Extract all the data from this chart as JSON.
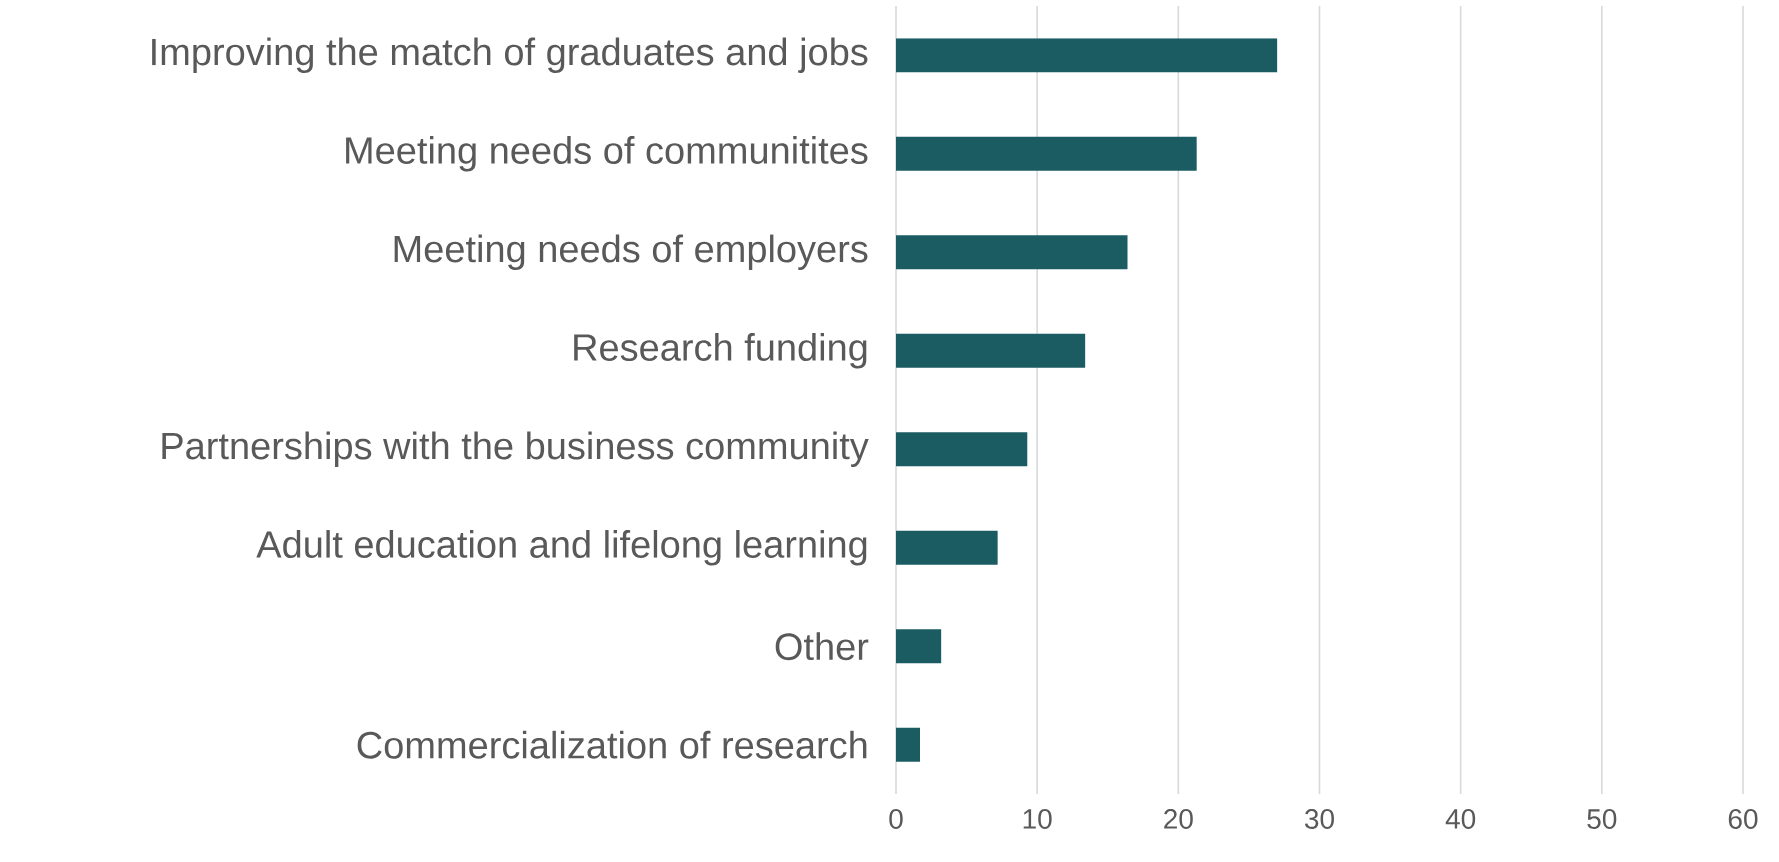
{
  "chart_data": {
    "type": "bar",
    "orientation": "horizontal",
    "categories": [
      "Improving the match of graduates and jobs",
      "Meeting needs of communitites",
      "Meeting needs of employers",
      "Research funding",
      "Partnerships with the business community",
      "Adult education and lifelong learning",
      "Other",
      "Commercialization of research"
    ],
    "values": [
      27,
      21.3,
      16.4,
      13.4,
      9.3,
      7.2,
      3.2,
      1.7
    ],
    "color": "#1b5c63",
    "xlim": [
      0,
      60
    ],
    "xticks": [
      0,
      10,
      20,
      30,
      40,
      50,
      60
    ],
    "grid": "x"
  }
}
